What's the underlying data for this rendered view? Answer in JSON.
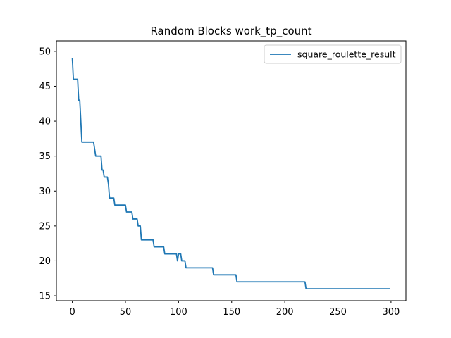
{
  "chart_data": {
    "type": "line",
    "title": "Random Blocks work_tp_count",
    "xlabel": "",
    "ylabel": "",
    "xlim": [
      -15,
      314
    ],
    "ylim": [
      14.3,
      51.5
    ],
    "xticks": [
      0,
      50,
      100,
      150,
      200,
      250,
      300
    ],
    "yticks": [
      15,
      20,
      25,
      30,
      35,
      40,
      45,
      50
    ],
    "grid": false,
    "legend_position": "top-right",
    "series": [
      {
        "name": "square_roulette_result",
        "color": "#1f77b4",
        "step_points": [
          [
            0,
            49
          ],
          [
            1,
            46
          ],
          [
            5,
            46
          ],
          [
            6,
            43
          ],
          [
            7,
            43
          ],
          [
            9,
            37
          ],
          [
            20,
            37
          ],
          [
            22,
            35
          ],
          [
            27,
            35
          ],
          [
            28,
            33
          ],
          [
            29,
            33
          ],
          [
            30,
            32
          ],
          [
            33,
            32
          ],
          [
            34,
            31
          ],
          [
            35,
            29
          ],
          [
            39,
            29
          ],
          [
            40,
            28
          ],
          [
            50,
            28
          ],
          [
            51,
            27
          ],
          [
            56,
            27
          ],
          [
            57,
            26
          ],
          [
            61,
            26
          ],
          [
            62,
            25
          ],
          [
            64,
            25
          ],
          [
            65,
            23
          ],
          [
            76,
            23
          ],
          [
            77,
            22
          ],
          [
            86,
            22
          ],
          [
            87,
            21
          ],
          [
            98,
            21
          ],
          [
            99,
            20
          ],
          [
            100,
            21
          ],
          [
            102,
            21
          ],
          [
            103,
            20
          ],
          [
            106,
            20
          ],
          [
            107,
            19
          ],
          [
            132,
            19
          ],
          [
            133,
            18
          ],
          [
            154,
            18
          ],
          [
            155,
            17
          ],
          [
            219,
            17
          ],
          [
            220,
            16
          ],
          [
            299,
            16
          ]
        ]
      }
    ]
  }
}
